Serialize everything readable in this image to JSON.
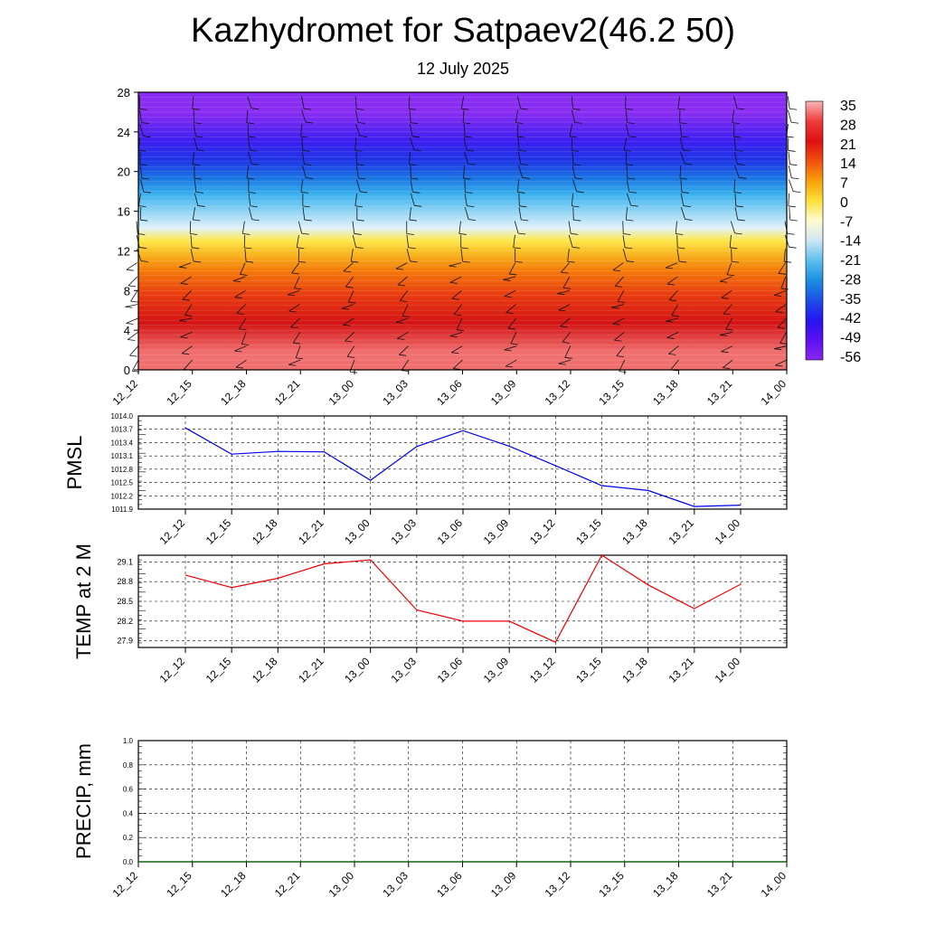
{
  "title": "Kazhydromet for Satpaev2(46.2 50)",
  "subtitle": "12 July 2025",
  "time_labels": [
    "12_12",
    "12_15",
    "12_18",
    "12_21",
    "13_00",
    "13_03",
    "13_06",
    "13_09",
    "13_12",
    "13_15",
    "13_18",
    "13_21",
    "14_00"
  ],
  "chart_data": [
    {
      "type": "heatmap",
      "name": "temperature-wind-cross-section",
      "ylim": [
        0,
        28
      ],
      "ytick_labels": [
        "0",
        "4",
        "8",
        "12",
        "16",
        "20",
        "24",
        "28"
      ],
      "colorbar": {
        "labels": [
          "35",
          "28",
          "21",
          "14",
          "7",
          "0",
          "-7",
          "-14",
          "-21",
          "-28",
          "-35",
          "-42",
          "-49",
          "-56"
        ],
        "colors": [
          "#f7b7b7",
          "#ee3c3c",
          "#dd1111",
          "#f05010",
          "#f7a00a",
          "#fde03a",
          "#fffbd0",
          "#cfe6f5",
          "#5cc0ef",
          "#1a8fe0",
          "#1e4fe6",
          "#2515ef",
          "#5c10f0",
          "#8a28f0"
        ]
      },
      "bands": [
        {
          "from": 0,
          "to": 3.5,
          "color": "#f07070"
        },
        {
          "from": 3.5,
          "to": 6,
          "color": "#d41414"
        },
        {
          "from": 6,
          "to": 9,
          "color": "#e83a10"
        },
        {
          "from": 9,
          "to": 11,
          "color": "#f47a0a"
        },
        {
          "from": 11,
          "to": 12.5,
          "color": "#f9b820"
        },
        {
          "from": 12.5,
          "to": 13.6,
          "color": "#fde84a"
        },
        {
          "from": 13.6,
          "to": 15,
          "color": "#e2f2fb"
        },
        {
          "from": 15,
          "to": 17,
          "color": "#8fd4f4"
        },
        {
          "from": 17,
          "to": 18.5,
          "color": "#3ab0ee"
        },
        {
          "from": 18.5,
          "to": 20,
          "color": "#1a78e2"
        },
        {
          "from": 20,
          "to": 22,
          "color": "#1e38e6"
        },
        {
          "from": 22,
          "to": 24,
          "color": "#3a1ff0"
        },
        {
          "from": 24,
          "to": 28,
          "color": "#8a2df2"
        }
      ]
    },
    {
      "type": "line",
      "name": "pmsl",
      "ylabel": "PMSL",
      "ylim": [
        1011.9,
        1014.0
      ],
      "ytick_labels": [
        "1011.9",
        "1012.2",
        "1012.5",
        "1012.8",
        "1013.1",
        "1013.4",
        "1013.7",
        "1014.0"
      ],
      "color": "#0000ee",
      "values": [
        1013.73,
        1013.14,
        1013.2,
        1013.19,
        1012.55,
        1013.31,
        1013.67,
        1013.32,
        1012.88,
        1012.43,
        1012.32,
        1011.96,
        1011.99
      ]
    },
    {
      "type": "line",
      "name": "temp2m",
      "ylabel": "TEMP at 2 M",
      "ylim": [
        27.8,
        29.2
      ],
      "ytick_labels": [
        "27.9",
        "28.2",
        "28.5",
        "28.8",
        "29.1"
      ],
      "color": "#ee0000",
      "values": [
        28.9,
        28.71,
        28.85,
        29.07,
        29.13,
        28.37,
        28.2,
        28.2,
        27.88,
        29.2,
        28.75,
        28.39,
        28.76
      ]
    },
    {
      "type": "line",
      "name": "precip",
      "ylabel": "PRECIP, mm",
      "ylim": [
        0,
        1.0
      ],
      "ytick_labels": [
        "0.0",
        "0.2",
        "0.4",
        "0.6",
        "0.8",
        "1.0"
      ],
      "color": "#006400",
      "values": [
        0,
        0,
        0,
        0,
        0,
        0,
        0,
        0,
        0,
        0,
        0,
        0,
        0
      ]
    }
  ]
}
